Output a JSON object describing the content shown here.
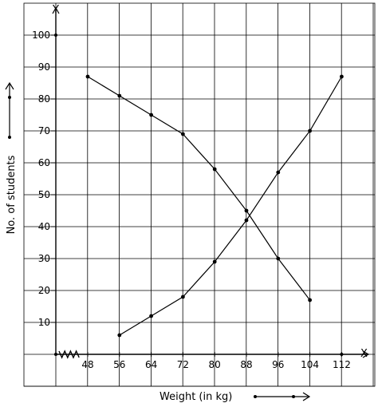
{
  "chart_data": {
    "type": "line",
    "xlabel": "Weight (in kg)",
    "ylabel": "No. of students",
    "x_axis_letter": "X",
    "y_axis_letter": "Y",
    "x_ticks": [
      48,
      56,
      64,
      72,
      80,
      88,
      96,
      104,
      112
    ],
    "y_ticks": [
      10,
      20,
      30,
      40,
      50,
      60,
      70,
      80,
      90,
      100
    ],
    "xlim": [
      40,
      120
    ],
    "ylim": [
      0,
      100
    ],
    "grid": true,
    "axis_break": "x",
    "series": [
      {
        "x": [
          48,
          56,
          64,
          72,
          80,
          88,
          96,
          104
        ],
        "y": [
          87,
          81,
          75,
          69,
          58,
          45,
          30,
          17
        ]
      },
      {
        "x": [
          56,
          64,
          72,
          80,
          88,
          96,
          104,
          112
        ],
        "y": [
          6,
          12,
          18,
          29,
          42,
          57,
          70,
          87
        ]
      }
    ]
  }
}
